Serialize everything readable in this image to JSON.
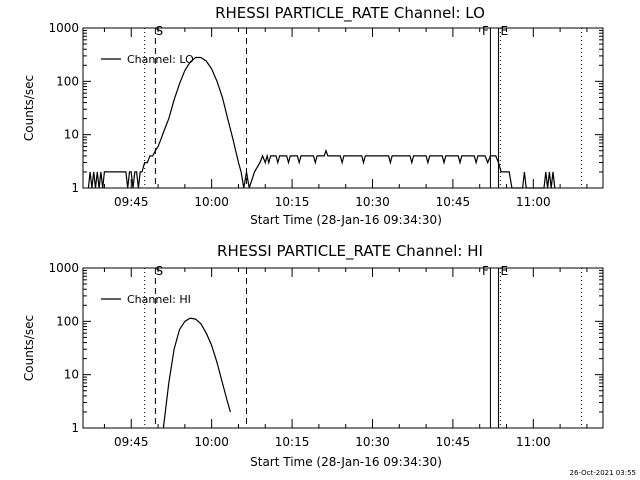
{
  "chart_data": [
    {
      "type": "line",
      "title": "RHESSI PARTICLE_RATE Channel: LO",
      "xlabel": "Start Time (28-Jan-16 09:34:30)",
      "ylabel": "Counts/sec",
      "yscale": "log",
      "ylim": [
        1,
        1000
      ],
      "xlim": [
        "09:36:00",
        "11:13:00"
      ],
      "x_ticks": [
        "09:45",
        "10:00",
        "10:15",
        "10:30",
        "10:45",
        "11:00"
      ],
      "y_ticks": [
        "1",
        "10",
        "100",
        "1000"
      ],
      "legend": {
        "position": "top-left",
        "entries": [
          "Channel: LO"
        ]
      },
      "markers": [
        {
          "time": "09:47:30",
          "style": "dotted",
          "label": ""
        },
        {
          "time": "09:49:30",
          "style": "dashed",
          "label": "S"
        },
        {
          "time": "10:06:30",
          "style": "dashed",
          "label": ""
        },
        {
          "time": "10:52:00",
          "style": "solid",
          "label": "F"
        },
        {
          "time": "10:53:30",
          "style": "solid",
          "label": ""
        },
        {
          "time": "10:53:50",
          "style": "dotted",
          "label": "E"
        },
        {
          "time": "11:09:00",
          "style": "dotted",
          "label": ""
        }
      ],
      "series": [
        {
          "name": "Channel: LO",
          "points": [
            [
              "09:37:00",
              1
            ],
            [
              "09:37:20",
              2
            ],
            [
              "09:37:40",
              1
            ],
            [
              "09:38:00",
              2
            ],
            [
              "09:38:20",
              1
            ],
            [
              "09:38:40",
              2
            ],
            [
              "09:39:00",
              1
            ],
            [
              "09:39:20",
              2
            ],
            [
              "09:39:40",
              1
            ],
            [
              "09:40:00",
              2
            ],
            [
              "09:44:00",
              2
            ],
            [
              "09:44:20",
              1
            ],
            [
              "09:44:40",
              2
            ],
            [
              "09:45:00",
              2
            ],
            [
              "09:45:20",
              1
            ],
            [
              "09:45:40",
              2
            ],
            [
              "09:46:00",
              2
            ],
            [
              "09:46:20",
              1
            ],
            [
              "09:46:40",
              2
            ],
            [
              "09:47:00",
              2
            ],
            [
              "09:47:30",
              3
            ],
            [
              "09:48:00",
              3
            ],
            [
              "09:48:30",
              4
            ],
            [
              "09:49:00",
              4
            ],
            [
              "09:49:30",
              5
            ],
            [
              "09:50:00",
              6
            ],
            [
              "09:50:30",
              8
            ],
            [
              "09:51:00",
              11
            ],
            [
              "09:52:00",
              20
            ],
            [
              "09:53:00",
              45
            ],
            [
              "09:54:00",
              90
            ],
            [
              "09:55:00",
              160
            ],
            [
              "09:56:00",
              230
            ],
            [
              "09:57:00",
              280
            ],
            [
              "09:58:00",
              280
            ],
            [
              "09:59:00",
              240
            ],
            [
              "10:00:00",
              170
            ],
            [
              "10:01:00",
              100
            ],
            [
              "10:02:00",
              50
            ],
            [
              "10:03:00",
              20
            ],
            [
              "10:04:00",
              8
            ],
            [
              "10:05:00",
              3
            ],
            [
              "10:05:30",
              2
            ],
            [
              "10:06:00",
              1
            ],
            [
              "10:06:30",
              2
            ],
            [
              "10:07:00",
              1
            ],
            [
              "10:08:00",
              2
            ],
            [
              "10:09:00",
              3
            ],
            [
              "10:09:30",
              4
            ],
            [
              "10:10:00",
              3
            ],
            [
              "10:10:20",
              4
            ],
            [
              "10:10:40",
              3
            ],
            [
              "10:11:00",
              4
            ],
            [
              "10:12:00",
              4
            ],
            [
              "10:12:20",
              3
            ],
            [
              "10:12:40",
              4
            ],
            [
              "10:14:00",
              4
            ],
            [
              "10:14:20",
              3
            ],
            [
              "10:14:40",
              4
            ],
            [
              "10:16:00",
              4
            ],
            [
              "10:16:20",
              3
            ],
            [
              "10:16:40",
              4
            ],
            [
              "10:19:00",
              4
            ],
            [
              "10:19:20",
              3
            ],
            [
              "10:19:40",
              4
            ],
            [
              "10:21:00",
              4
            ],
            [
              "10:21:20",
              5
            ],
            [
              "10:21:40",
              4
            ],
            [
              "10:24:00",
              4
            ],
            [
              "10:24:20",
              3
            ],
            [
              "10:24:40",
              4
            ],
            [
              "10:28:00",
              4
            ],
            [
              "10:28:20",
              3
            ],
            [
              "10:28:40",
              4
            ],
            [
              "10:33:00",
              4
            ],
            [
              "10:33:20",
              3
            ],
            [
              "10:33:40",
              4
            ],
            [
              "10:37:00",
              4
            ],
            [
              "10:37:20",
              3
            ],
            [
              "10:37:40",
              4
            ],
            [
              "10:40:00",
              4
            ],
            [
              "10:40:20",
              3
            ],
            [
              "10:40:40",
              4
            ],
            [
              "10:43:00",
              4
            ],
            [
              "10:43:20",
              3
            ],
            [
              "10:43:40",
              4
            ],
            [
              "10:46:00",
              4
            ],
            [
              "10:46:20",
              3
            ],
            [
              "10:46:40",
              4
            ],
            [
              "10:49:00",
              4
            ],
            [
              "10:49:20",
              3
            ],
            [
              "10:49:40",
              4
            ],
            [
              "10:51:00",
              4
            ],
            [
              "10:51:30",
              3
            ],
            [
              "10:52:00",
              4
            ],
            [
              "10:53:00",
              4
            ],
            [
              "10:53:30",
              3
            ],
            [
              "10:54:00",
              2
            ],
            [
              "10:55:30",
              2
            ],
            [
              "10:56:00",
              1
            ],
            [
              "10:58:00",
              1
            ],
            [
              "10:58:20",
              2
            ],
            [
              "10:58:40",
              1
            ],
            [
              "11:02:00",
              1
            ],
            [
              "11:02:20",
              2
            ],
            [
              "11:02:40",
              1
            ],
            [
              "11:03:00",
              2
            ],
            [
              "11:03:20",
              1
            ],
            [
              "11:03:40",
              2
            ],
            [
              "11:04:00",
              1
            ]
          ]
        }
      ]
    },
    {
      "type": "line",
      "title": "RHESSI PARTICLE_RATE Channel: HI",
      "xlabel": "Start Time (28-Jan-16 09:34:30)",
      "ylabel": "Counts/sec",
      "yscale": "log",
      "ylim": [
        1,
        1000
      ],
      "xlim": [
        "09:36:00",
        "11:13:00"
      ],
      "x_ticks": [
        "09:45",
        "10:00",
        "10:15",
        "10:30",
        "10:45",
        "11:00"
      ],
      "y_ticks": [
        "1",
        "10",
        "100",
        "1000"
      ],
      "legend": {
        "position": "top-left",
        "entries": [
          "Channel: HI"
        ]
      },
      "markers": [
        {
          "time": "09:47:30",
          "style": "dotted",
          "label": ""
        },
        {
          "time": "09:49:30",
          "style": "dashed",
          "label": "S"
        },
        {
          "time": "10:06:30",
          "style": "dashed",
          "label": ""
        },
        {
          "time": "10:52:00",
          "style": "solid",
          "label": "F"
        },
        {
          "time": "10:53:30",
          "style": "solid",
          "label": ""
        },
        {
          "time": "10:53:50",
          "style": "dotted",
          "label": "E"
        },
        {
          "time": "11:09:00",
          "style": "dotted",
          "label": ""
        }
      ],
      "series": [
        {
          "name": "Channel: HI",
          "points": [
            [
              "09:51:00",
              1
            ],
            [
              "09:52:00",
              7
            ],
            [
              "09:53:00",
              30
            ],
            [
              "09:54:00",
              70
            ],
            [
              "09:55:00",
              100
            ],
            [
              "09:56:00",
              115
            ],
            [
              "09:57:00",
              110
            ],
            [
              "09:58:00",
              90
            ],
            [
              "09:59:00",
              60
            ],
            [
              "10:00:00",
              35
            ],
            [
              "10:01:00",
              17
            ],
            [
              "10:02:00",
              7
            ],
            [
              "10:03:00",
              3
            ],
            [
              "10:03:30",
              2
            ]
          ]
        }
      ]
    }
  ],
  "timestamp": "26-Oct-2021 03:55"
}
